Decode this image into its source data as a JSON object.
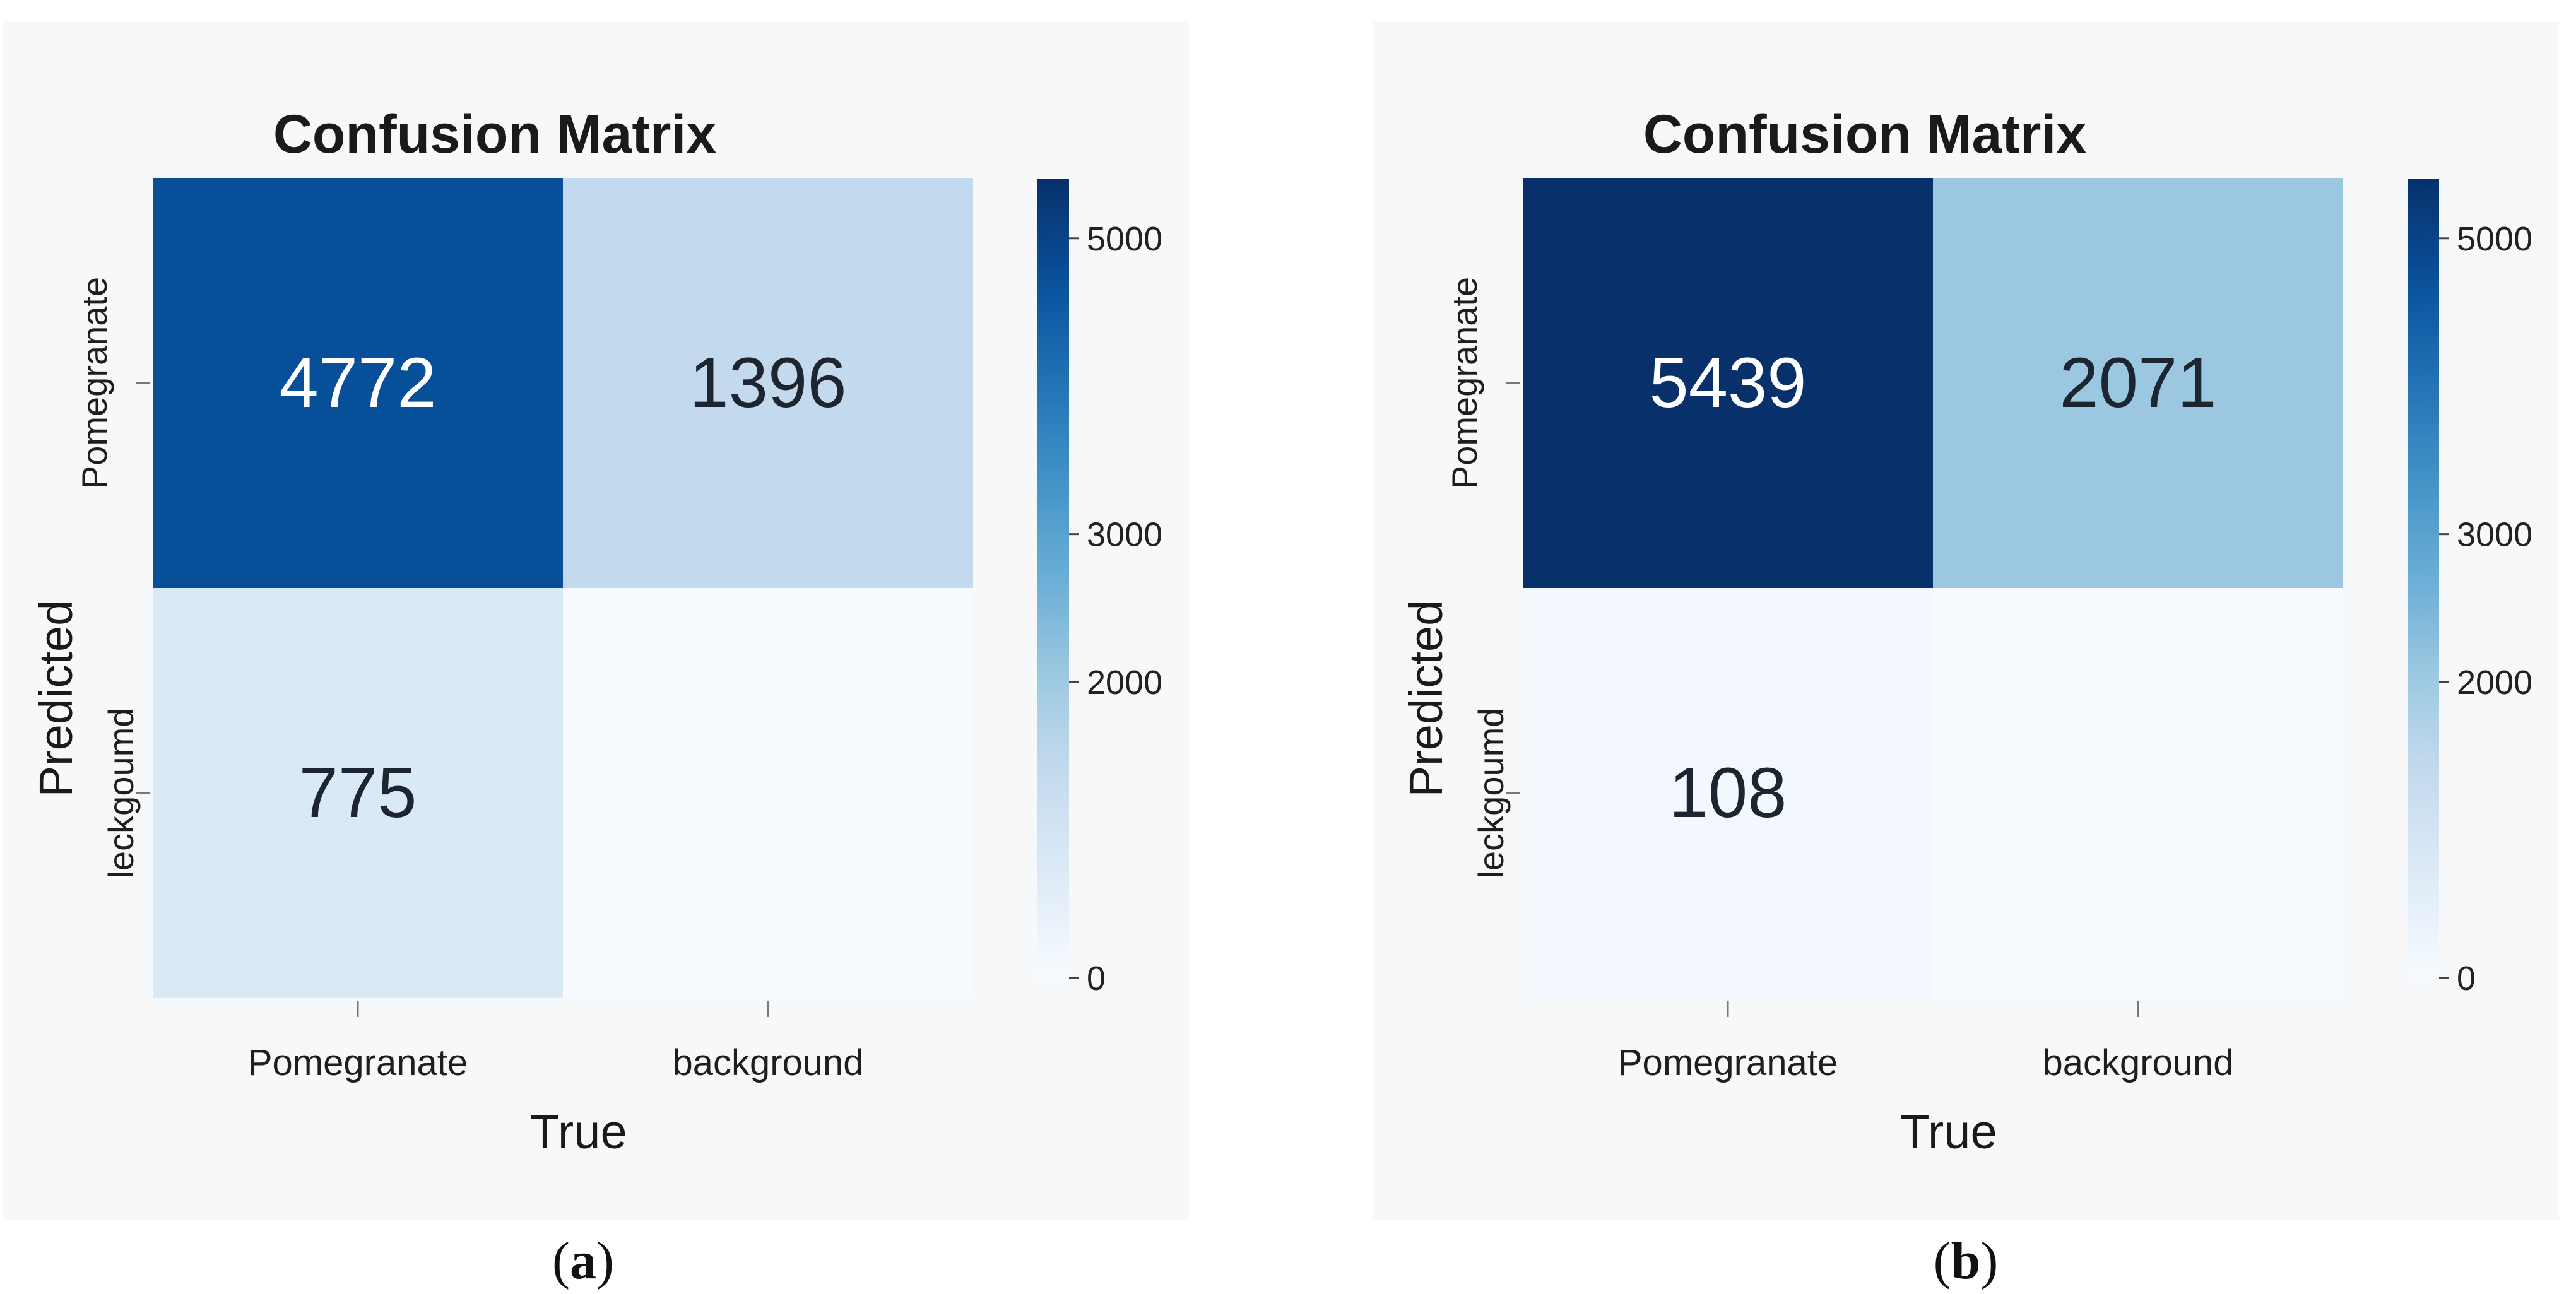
{
  "chart_data": [
    {
      "type": "heatmap",
      "panel_label": "a",
      "title": "Confusion Matrix",
      "xlabel": "True",
      "ylabel": "Predicted",
      "x_categories": [
        "Pomegranate",
        "background"
      ],
      "y_categories": [
        "Pomegranate",
        "leckgoumd"
      ],
      "values": [
        [
          4772,
          1396
        ],
        [
          775,
          null
        ]
      ],
      "cell_labels": [
        [
          "4772",
          "1396"
        ],
        [
          "775",
          ""
        ]
      ],
      "colorbar": {
        "ticks": [
          0,
          2000,
          3000,
          5000
        ],
        "range": [
          0,
          5400
        ],
        "colormap": "Blues"
      }
    },
    {
      "type": "heatmap",
      "panel_label": "b",
      "title": "Confusion Matrix",
      "xlabel": "True",
      "ylabel": "Predicted",
      "x_categories": [
        "Pomegranate",
        "background"
      ],
      "y_categories": [
        "Pomegranate",
        "leckgoumd"
      ],
      "values": [
        [
          5439,
          2071
        ],
        [
          108,
          null
        ]
      ],
      "cell_labels": [
        [
          "5439",
          "2071"
        ],
        [
          "108",
          ""
        ]
      ],
      "colorbar": {
        "ticks": [
          0,
          2000,
          3000,
          5000
        ],
        "range": [
          0,
          5400
        ],
        "colormap": "Blues"
      }
    }
  ],
  "captions": {
    "a": "a",
    "b": "b"
  }
}
